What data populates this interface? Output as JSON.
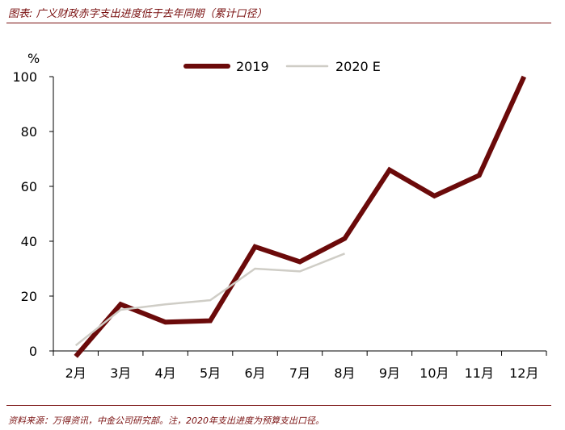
{
  "header": {
    "title": "图表: 广义财政赤字支出进度低于去年同期（累计口径）"
  },
  "footer": {
    "source": "资料来源：万得资讯，中金公司研究部。注，2020年支出进度为预算支出口径。"
  },
  "colors": {
    "accent": "#7a1111",
    "series_2019": "#6b0a0a",
    "series_2020": "#cfcdc6"
  },
  "chart_data": {
    "type": "line",
    "title": "",
    "ylabel": "%",
    "xlabel": "",
    "ylim": [
      0,
      100
    ],
    "yticks": [
      "0",
      "20",
      "40",
      "60",
      "80",
      "100"
    ],
    "categories": [
      "2月",
      "3月",
      "4月",
      "5月",
      "6月",
      "7月",
      "8月",
      "9月",
      "10月",
      "11月",
      "12月"
    ],
    "legend_position": "top",
    "grid": false,
    "series": [
      {
        "name": "2019",
        "values": [
          -2,
          17,
          10.5,
          11,
          38,
          32.5,
          41,
          66,
          56.5,
          64,
          100
        ]
      },
      {
        "name": "2020 E",
        "values": [
          2,
          15,
          17,
          18.5,
          30,
          29,
          35.5,
          null,
          null,
          null,
          null
        ]
      }
    ]
  }
}
